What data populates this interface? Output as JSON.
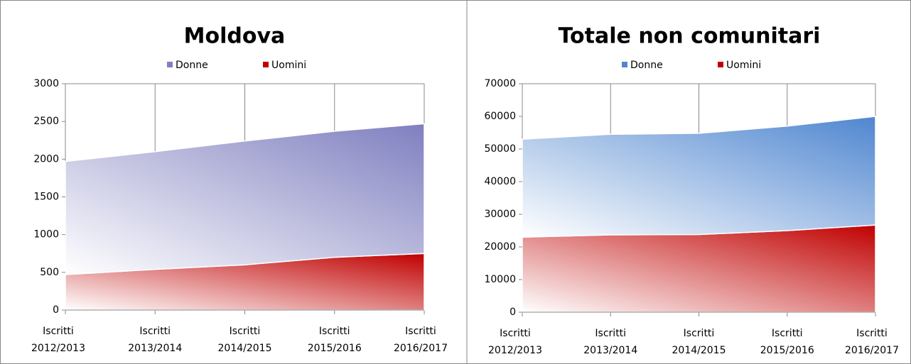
{
  "chart_data": [
    {
      "type": "area",
      "stacked": true,
      "title": "Moldova",
      "categories": [
        "Iscritti 2012/2013",
        "Iscritti 2013/2014",
        "Iscritti 2014/2015",
        "Iscritti 2015/2016",
        "Iscritti 2016/2017"
      ],
      "series": [
        {
          "name": "Donne",
          "color": "#7f7fc0",
          "values": [
            1500,
            1560,
            1640,
            1670,
            1720
          ]
        },
        {
          "name": "Uomini",
          "color": "#c00000",
          "values": [
            470,
            540,
            600,
            700,
            750
          ]
        }
      ],
      "ylim": [
        0,
        3000
      ],
      "yticks": [
        0,
        500,
        1000,
        1500,
        2000,
        2500,
        3000
      ]
    },
    {
      "type": "area",
      "stacked": true,
      "title": "Totale non comunitari",
      "categories": [
        "Iscritti 2012/2013",
        "Iscritti 2013/2014",
        "Iscritti 2014/2015",
        "Iscritti 2015/2016",
        "Iscritti 2016/2017"
      ],
      "series": [
        {
          "name": "Donne",
          "color": "#4f86d0",
          "values": [
            30000,
            30800,
            31000,
            32000,
            33300
          ]
        },
        {
          "name": "Uomini",
          "color": "#c00000",
          "values": [
            23000,
            23700,
            23800,
            25000,
            26700
          ]
        }
      ],
      "ylim": [
        0,
        70000
      ],
      "yticks": [
        0,
        10000,
        20000,
        30000,
        40000,
        50000,
        60000,
        70000
      ]
    }
  ]
}
